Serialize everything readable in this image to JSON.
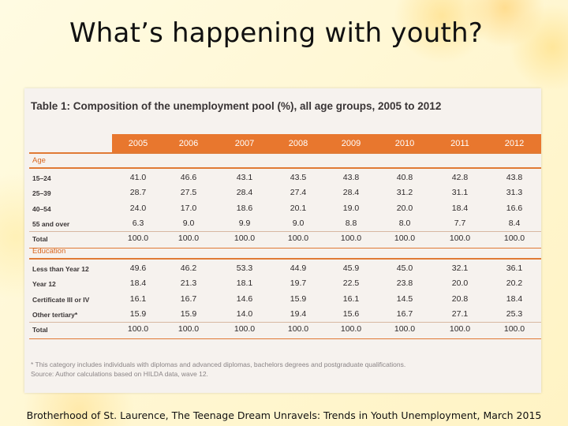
{
  "slide": {
    "title": "What’s happening with youth?",
    "source": "Brotherhood of St. Laurence, The Teenage Dream Unravels: Trends in Youth Unemployment, March 2015"
  },
  "table": {
    "title": "Table 1: Composition of the unemployment pool (%), all age groups, 2005 to 2012",
    "years": [
      "2005",
      "2006",
      "2007",
      "2008",
      "2009",
      "2010",
      "2011",
      "2012"
    ],
    "sections": [
      {
        "label": "Age",
        "rows": [
          {
            "label": "15–24",
            "values": [
              "41.0",
              "46.6",
              "43.1",
              "43.5",
              "43.8",
              "40.8",
              "42.8",
              "43.8"
            ]
          },
          {
            "label": "25–39",
            "values": [
              "28.7",
              "27.5",
              "28.4",
              "27.4",
              "28.4",
              "31.2",
              "31.1",
              "31.3"
            ]
          },
          {
            "label": "40–54",
            "values": [
              "24.0",
              "17.0",
              "18.6",
              "20.1",
              "19.0",
              "20.0",
              "18.4",
              "16.6"
            ]
          },
          {
            "label": "55 and over",
            "values": [
              "6.3",
              "9.0",
              "9.9",
              "9.0",
              "8.8",
              "8.0",
              "7.7",
              "8.4"
            ]
          },
          {
            "label": "Total",
            "values": [
              "100.0",
              "100.0",
              "100.0",
              "100.0",
              "100.0",
              "100.0",
              "100.0",
              "100.0"
            ]
          }
        ]
      },
      {
        "label": "Education",
        "rows": [
          {
            "label": "Less than Year 12",
            "values": [
              "49.6",
              "46.2",
              "53.3",
              "44.9",
              "45.9",
              "45.0",
              "32.1",
              "36.1"
            ]
          },
          {
            "label": "Year 12",
            "values": [
              "18.4",
              "21.3",
              "18.1",
              "19.7",
              "22.5",
              "23.8",
              "20.0",
              "20.2"
            ]
          },
          {
            "label": "Certificate III or IV",
            "values": [
              "16.1",
              "16.7",
              "14.6",
              "15.9",
              "16.1",
              "14.5",
              "20.8",
              "18.4"
            ]
          },
          {
            "label": "Other tertiary*",
            "values": [
              "15.9",
              "15.9",
              "14.0",
              "19.4",
              "15.6",
              "16.7",
              "27.1",
              "25.3"
            ]
          },
          {
            "label": "Total",
            "values": [
              "100.0",
              "100.0",
              "100.0",
              "100.0",
              "100.0",
              "100.0",
              "100.0",
              "100.0"
            ]
          }
        ]
      }
    ],
    "footnote": "* This category includes individuals with diplomas and advanced diplomas, bachelors degrees and postgraduate qualifications.",
    "source_note": "Source: Author calculations based on HILDA data, wave 12."
  }
}
